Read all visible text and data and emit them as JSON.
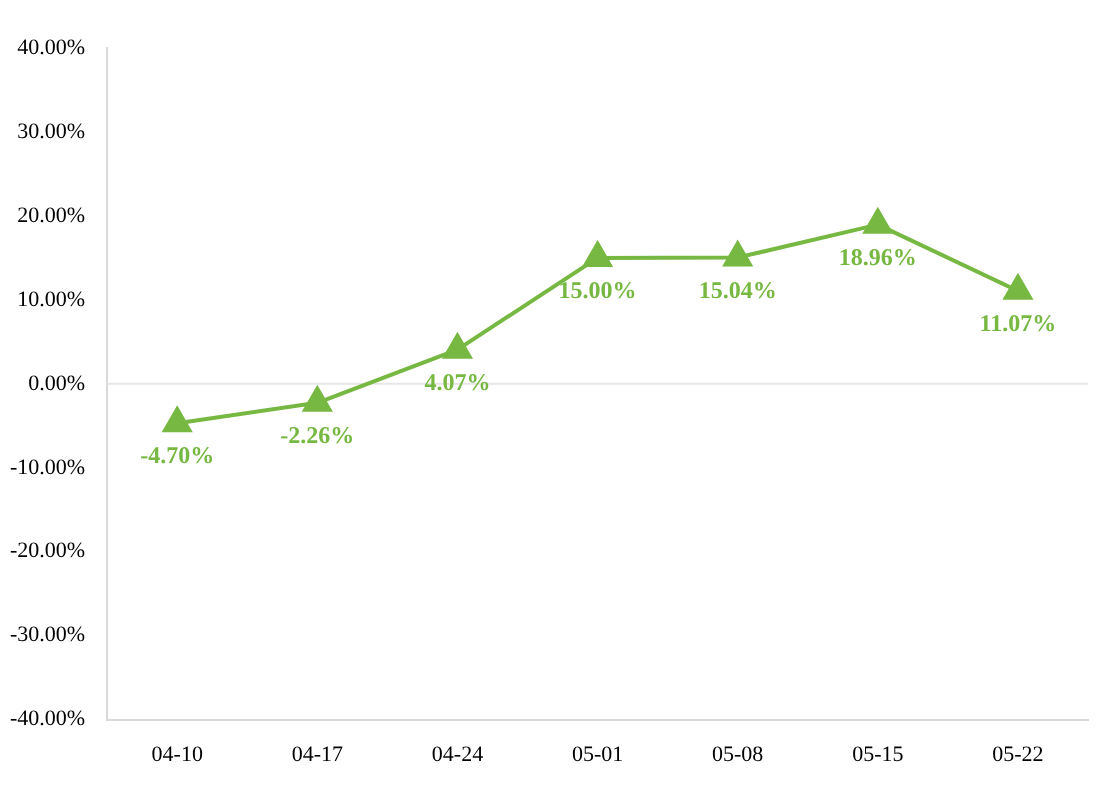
{
  "chart_data": {
    "type": "line",
    "categories": [
      "04-10",
      "04-17",
      "04-24",
      "05-01",
      "05-08",
      "05-15",
      "05-22"
    ],
    "series": [
      {
        "color": "#77b843",
        "values": [
          -4.7,
          -2.26,
          4.07,
          15.0,
          15.04,
          18.96,
          11.07
        ],
        "value_labels": [
          "-4.70%",
          "-2.26%",
          "4.07%",
          "15.00%",
          "15.04%",
          "18.96%",
          "11.07%"
        ]
      }
    ],
    "ylim": [
      -40,
      40
    ],
    "yticks": [
      {
        "value": -40,
        "label": "-40.00%"
      },
      {
        "value": -30,
        "label": "-30.00%"
      },
      {
        "value": -20,
        "label": "-20.00%"
      },
      {
        "value": -10,
        "label": "-10.00%"
      },
      {
        "value": 0,
        "label": "0.00%"
      },
      {
        "value": 10,
        "label": "10.00%"
      },
      {
        "value": 20,
        "label": "20.00%"
      },
      {
        "value": 30,
        "label": "30.00%"
      },
      {
        "value": 40,
        "label": "40.00%"
      }
    ],
    "ref_lines": [
      {
        "axis": "y",
        "value": 0,
        "color": "#e6e6e6"
      }
    ],
    "grid": false,
    "legend": false,
    "marker": "triangle",
    "line_style": "solid"
  }
}
